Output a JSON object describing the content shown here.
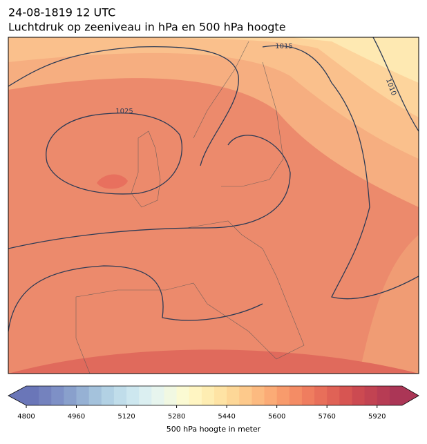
{
  "header": {
    "title": "24-08-1819 12 UTC",
    "subtitle": "Luchtdruk op zeeniveau in hPa en 500 hPa hoogte"
  },
  "isobar_labels": [
    1015,
    1010,
    1025
  ],
  "colorbar": {
    "label": "500 hPa hoogte in meter",
    "lim": [
      4800,
      6000
    ],
    "ticks": [
      4800,
      4960,
      5120,
      5280,
      5440,
      5600,
      5760,
      5920
    ],
    "colors": [
      "#6a76b8",
      "#7482be",
      "#7e90c6",
      "#89a0cc",
      "#96b1d4",
      "#a4c2dc",
      "#b2d1e4",
      "#c0ddea",
      "#cde7ef",
      "#dbeff1",
      "#e7f5ee",
      "#f1f8e2",
      "#fbfad3",
      "#fff5c2",
      "#feedb2",
      "#fee3a4",
      "#fdd797",
      "#fdc98b",
      "#fcba80",
      "#fbab76",
      "#f89b6c",
      "#f48c65",
      "#ef7d5f",
      "#e86f5a",
      "#e06256",
      "#d75552",
      "#cc4a51",
      "#c24352",
      "#b73c54",
      "#ab3656"
    ]
  }
}
